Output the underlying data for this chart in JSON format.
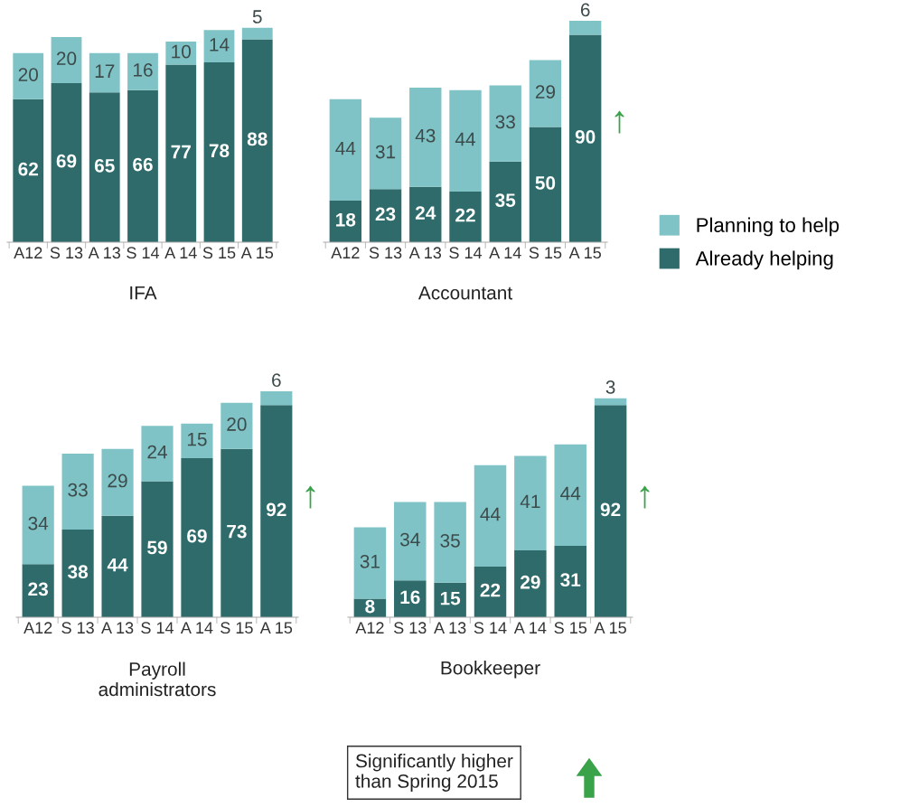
{
  "chart_data": [
    {
      "type": "bar",
      "title": "IFA",
      "stacked": true,
      "data_labels": true,
      "grid": false,
      "tick_labels": "x",
      "categories": [
        "A12",
        "S 13",
        "A 13",
        "S 14",
        "A 14",
        "S 15",
        "A 15"
      ],
      "series": [
        {
          "color": "#2f6b6b",
          "values": [
            62,
            69,
            65,
            66,
            77,
            78,
            88
          ]
        },
        {
          "color": "#7fc3c6",
          "values": [
            20,
            20,
            17,
            16,
            10,
            14,
            5
          ]
        }
      ]
    },
    {
      "type": "bar",
      "title": "Accountant",
      "stacked": true,
      "data_labels": true,
      "grid": false,
      "legend": "right",
      "tick_labels": "x",
      "categories": [
        "A12",
        "S 13",
        "A 13",
        "S 14",
        "A 14",
        "S 15",
        "A 15"
      ],
      "series": [
        {
          "name": "Already helping",
          "color": "#2f6b6b",
          "values": [
            18,
            23,
            24,
            22,
            35,
            50,
            90
          ]
        },
        {
          "name": "Planning to help",
          "color": "#7fc3c6",
          "values": [
            44,
            31,
            43,
            44,
            33,
            29,
            6
          ]
        }
      ],
      "annotations": [
        "↑"
      ]
    },
    {
      "type": "bar",
      "title": "Payroll\nadministrators",
      "stacked": true,
      "data_labels": true,
      "grid": false,
      "tick_labels": "x",
      "categories": [
        "A12",
        "S 13",
        "A 13",
        "S 14",
        "A 14",
        "S 15",
        "A 15"
      ],
      "series": [
        {
          "color": "#2f6b6b",
          "values": [
            23,
            38,
            44,
            59,
            69,
            73,
            92
          ]
        },
        {
          "color": "#7fc3c6",
          "values": [
            34,
            33,
            29,
            24,
            15,
            20,
            6
          ]
        }
      ],
      "annotations": [
        "↑"
      ]
    },
    {
      "type": "bar",
      "title": "Bookkeeper",
      "stacked": true,
      "data_labels": true,
      "grid": false,
      "tick_labels": "x",
      "categories": [
        "A12",
        "S 13",
        "A 13",
        "S 14",
        "A 14",
        "S 15",
        "A 15"
      ],
      "series": [
        {
          "color": "#2f6b6b",
          "values": [
            8,
            16,
            15,
            22,
            29,
            31,
            92
          ]
        },
        {
          "color": "#7fc3c6",
          "values": [
            31,
            34,
            35,
            44,
            41,
            44,
            3
          ]
        }
      ],
      "annotations": [
        "↑",
        "Significantly higher\nthan Spring 2015"
      ]
    }
  ]
}
